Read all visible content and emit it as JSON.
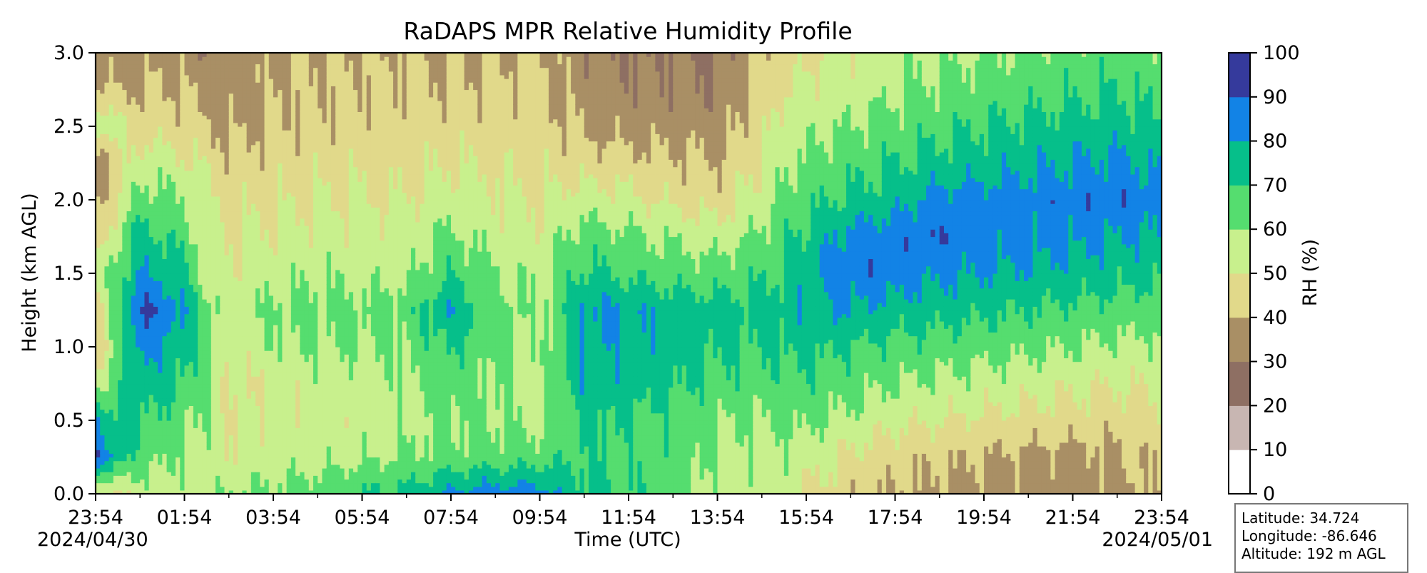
{
  "chart_data": {
    "type": "heatmap",
    "title": "RaDAPS MPR Relative Humidity Profile",
    "xlabel": "Time (UTC)",
    "ylabel": "Height (km AGL)",
    "x_tick_labels": [
      "23:54",
      "01:54",
      "03:54",
      "05:54",
      "07:54",
      "09:54",
      "11:54",
      "13:54",
      "15:54",
      "17:54",
      "19:54",
      "21:54",
      "23:54"
    ],
    "start_date": "2024/04/30",
    "end_date": "2024/05/01",
    "y_ticks": [
      0.0,
      0.5,
      1.0,
      1.5,
      2.0,
      2.5,
      3.0
    ],
    "y_tick_labels": [
      "0.0",
      "0.5",
      "1.0",
      "1.5",
      "2.0",
      "2.5",
      "3.0"
    ],
    "ylim": [
      0,
      3.0
    ],
    "colorbar": {
      "label": "RH (%)",
      "ticks": [
        0,
        10,
        20,
        30,
        40,
        50,
        60,
        70,
        80,
        90,
        100
      ],
      "tick_labels": [
        "0",
        "10",
        "20",
        "30",
        "40",
        "50",
        "60",
        "70",
        "80",
        "90",
        "100"
      ],
      "colors": [
        "#ffffff",
        "#c8b6b2",
        "#8e6f63",
        "#a98f65",
        "#e1d98a",
        "#c8f08d",
        "#55dd6f",
        "#06bf8a",
        "#1283e6",
        "#353a9c"
      ]
    },
    "rh_profile": {
      "time_hours": [
        0,
        1,
        1.5,
        2,
        2.5,
        3,
        4,
        5,
        6,
        7,
        8,
        9,
        10,
        11,
        12,
        13,
        14,
        15,
        15.5,
        16,
        17,
        18,
        19,
        20,
        21,
        22,
        23,
        24
      ],
      "heights_km": [
        0.0,
        0.25,
        0.5,
        0.75,
        1.0,
        1.25,
        1.5,
        1.75,
        2.0,
        2.25,
        2.5,
        2.75,
        3.0
      ],
      "rh_percent": [
        [
          45,
          88,
          78,
          55,
          40,
          40,
          55,
          40,
          35,
          32,
          60,
          40,
          35
        ],
        [
          55,
          65,
          70,
          78,
          85,
          92,
          80,
          75,
          65,
          55,
          45,
          40,
          35
        ],
        [
          55,
          62,
          68,
          72,
          80,
          88,
          78,
          70,
          62,
          55,
          45,
          42,
          38
        ],
        [
          55,
          58,
          62,
          70,
          75,
          80,
          72,
          65,
          60,
          52,
          45,
          40,
          35
        ],
        [
          55,
          56,
          58,
          60,
          62,
          63,
          58,
          55,
          52,
          48,
          42,
          36,
          32
        ],
        [
          60,
          52,
          50,
          48,
          52,
          55,
          52,
          50,
          47,
          42,
          38,
          35,
          32
        ],
        [
          62,
          55,
          52,
          53,
          58,
          62,
          56,
          52,
          48,
          45,
          42,
          40,
          38
        ],
        [
          65,
          56,
          53,
          55,
          60,
          63,
          58,
          54,
          50,
          46,
          43,
          41,
          40
        ],
        [
          70,
          58,
          54,
          55,
          60,
          62,
          57,
          53,
          50,
          47,
          44,
          42,
          40
        ],
        [
          72,
          62,
          56,
          58,
          62,
          64,
          58,
          54,
          50,
          46,
          44,
          42,
          40
        ],
        [
          82,
          63,
          62,
          65,
          72,
          80,
          70,
          62,
          55,
          50,
          45,
          42,
          40
        ],
        [
          85,
          65,
          60,
          60,
          62,
          64,
          60,
          55,
          52,
          48,
          45,
          42,
          40
        ],
        [
          85,
          65,
          58,
          56,
          57,
          58,
          56,
          53,
          50,
          47,
          45,
          43,
          42
        ],
        [
          72,
          70,
          72,
          78,
          80,
          82,
          72,
          65,
          55,
          45,
          38,
          35,
          32
        ],
        [
          68,
          68,
          70,
          75,
          78,
          80,
          68,
          62,
          52,
          44,
          36,
          33,
          30
        ],
        [
          65,
          66,
          67,
          72,
          75,
          76,
          66,
          58,
          48,
          42,
          36,
          32,
          30
        ],
        [
          55,
          58,
          60,
          68,
          72,
          75,
          64,
          55,
          45,
          40,
          35,
          32,
          30
        ],
        [
          55,
          56,
          60,
          65,
          70,
          72,
          68,
          62,
          55,
          50,
          46,
          42,
          40
        ],
        [
          55,
          57,
          62,
          67,
          72,
          76,
          72,
          68,
          62,
          58,
          54,
          50,
          46
        ],
        [
          50,
          55,
          62,
          68,
          73,
          78,
          76,
          72,
          67,
          62,
          57,
          52,
          48
        ],
        [
          42,
          48,
          57,
          64,
          70,
          80,
          86,
          84,
          72,
          66,
          60,
          55,
          52
        ],
        [
          40,
          44,
          52,
          60,
          68,
          75,
          86,
          86,
          76,
          70,
          64,
          58,
          56
        ],
        [
          38,
          42,
          50,
          58,
          66,
          74,
          82,
          88,
          84,
          74,
          67,
          62,
          58
        ],
        [
          37,
          40,
          48,
          56,
          64,
          72,
          80,
          85,
          84,
          76,
          70,
          64,
          60
        ],
        [
          36,
          38,
          46,
          54,
          62,
          70,
          78,
          84,
          85,
          78,
          72,
          66,
          62
        ],
        [
          35,
          37,
          45,
          52,
          60,
          68,
          76,
          83,
          86,
          80,
          74,
          68,
          64
        ],
        [
          37,
          38,
          44,
          50,
          58,
          66,
          74,
          80,
          88,
          82,
          75,
          70,
          65
        ],
        [
          42,
          43,
          48,
          52,
          58,
          64,
          72,
          80,
          84,
          78,
          70,
          66,
          62
        ]
      ]
    }
  },
  "station": {
    "latitude": "Latitude: 34.724",
    "longitude": "Longitude: -86.646",
    "altitude": "Altitude: 192 m AGL"
  }
}
